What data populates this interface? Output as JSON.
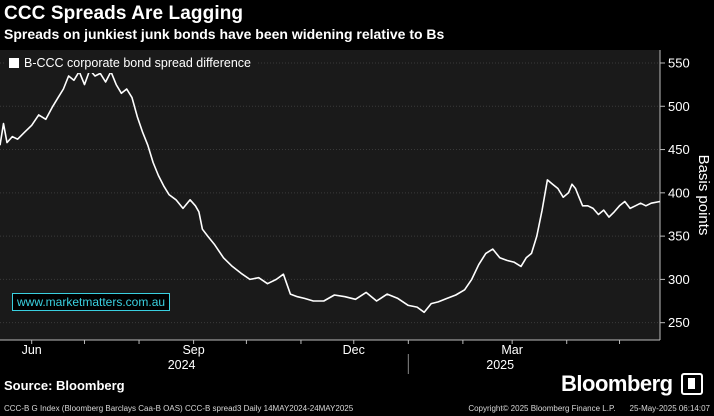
{
  "header": {
    "title": "CCC Spreads Are Lagging",
    "subtitle": "Spreads on junkiest junk bonds have been widening relative to Bs"
  },
  "legend": {
    "label": "B-CCC corporate bond spread difference"
  },
  "watermark": "www.marketmatters.com.au",
  "source": "Source: Bloomberg",
  "brand": "Bloomberg",
  "footer": {
    "left": "CCC-B G Index (Bloomberg Barclays Caa-B OAS) CCC-B spread3  Daily 14MAY2024-24MAY2025",
    "copyright": "Copyright© 2025 Bloomberg Finance L.P.",
    "timestamp": "25-May-2025 06:14:07"
  },
  "colors": {
    "line": "#ffffff",
    "background": "#000000",
    "plot_bg": "#1a1a1a",
    "watermark": "#3ad0e0"
  },
  "chart_data": {
    "type": "line",
    "title": "CCC Spreads Are Lagging",
    "ylabel": "Basis points",
    "xlabel": "",
    "ylim": [
      230,
      565
    ],
    "y_ticks": [
      250,
      300,
      350,
      400,
      450,
      500,
      550
    ],
    "y_tick_labels": [
      "250",
      "300",
      "350",
      "400",
      "450",
      "500",
      "550"
    ],
    "x_range": [
      "2024-05-14",
      "2025-05-24"
    ],
    "month_labels": [
      {
        "label": "Jun",
        "date": "2024-06-01"
      },
      {
        "label": "Sep",
        "date": "2024-09-01"
      },
      {
        "label": "Dec",
        "date": "2024-12-01"
      },
      {
        "label": "Mar",
        "date": "2025-03-01"
      }
    ],
    "year_labels": [
      {
        "label": "2024",
        "date": "2024-09-01"
      },
      {
        "label": "2025",
        "date": "2025-03-01"
      }
    ],
    "series": [
      {
        "name": "B-CCC corporate bond spread difference",
        "x": [
          "2024-05-14",
          "2024-05-16",
          "2024-05-18",
          "2024-05-21",
          "2024-05-24",
          "2024-05-28",
          "2024-06-01",
          "2024-06-05",
          "2024-06-09",
          "2024-06-13",
          "2024-06-16",
          "2024-06-19",
          "2024-06-22",
          "2024-06-25",
          "2024-06-28",
          "2024-07-01",
          "2024-07-04",
          "2024-07-07",
          "2024-07-10",
          "2024-07-13",
          "2024-07-16",
          "2024-07-19",
          "2024-07-22",
          "2024-07-25",
          "2024-07-28",
          "2024-07-31",
          "2024-08-03",
          "2024-08-06",
          "2024-08-09",
          "2024-08-12",
          "2024-08-15",
          "2024-08-18",
          "2024-08-22",
          "2024-08-26",
          "2024-08-30",
          "2024-09-02",
          "2024-09-04",
          "2024-09-06",
          "2024-09-09",
          "2024-09-13",
          "2024-09-18",
          "2024-09-23",
          "2024-09-28",
          "2024-10-03",
          "2024-10-08",
          "2024-10-13",
          "2024-10-18",
          "2024-10-22",
          "2024-10-26",
          "2024-10-30",
          "2024-11-03",
          "2024-11-08",
          "2024-11-14",
          "2024-11-20",
          "2024-11-26",
          "2024-12-02",
          "2024-12-08",
          "2024-12-14",
          "2024-12-20",
          "2024-12-26",
          "2025-01-01",
          "2025-01-06",
          "2025-01-10",
          "2025-01-14",
          "2025-01-18",
          "2025-01-23",
          "2025-01-28",
          "2025-02-02",
          "2025-02-06",
          "2025-02-10",
          "2025-02-14",
          "2025-02-18",
          "2025-02-22",
          "2025-02-26",
          "2025-03-02",
          "2025-03-06",
          "2025-03-09",
          "2025-03-12",
          "2025-03-15",
          "2025-03-18",
          "2025-03-21",
          "2025-03-24",
          "2025-03-27",
          "2025-03-30",
          "2025-04-02",
          "2025-04-04",
          "2025-04-06",
          "2025-04-08",
          "2025-04-10",
          "2025-04-13",
          "2025-04-16",
          "2025-04-19",
          "2025-04-22",
          "2025-04-25",
          "2025-04-28",
          "2025-05-01",
          "2025-05-04",
          "2025-05-07",
          "2025-05-10",
          "2025-05-13",
          "2025-05-16",
          "2025-05-19",
          "2025-05-24"
        ],
        "values": [
          455,
          480,
          458,
          465,
          462,
          470,
          478,
          490,
          485,
          500,
          510,
          520,
          535,
          530,
          540,
          525,
          542,
          535,
          538,
          528,
          540,
          525,
          515,
          520,
          510,
          488,
          470,
          455,
          435,
          420,
          408,
          398,
          392,
          382,
          392,
          385,
          378,
          358,
          350,
          340,
          325,
          315,
          307,
          300,
          302,
          295,
          300,
          306,
          283,
          280,
          278,
          275,
          275,
          282,
          280,
          277,
          285,
          275,
          283,
          278,
          270,
          268,
          262,
          272,
          274,
          278,
          282,
          288,
          300,
          317,
          330,
          335,
          325,
          322,
          320,
          315,
          325,
          330,
          350,
          380,
          415,
          410,
          405,
          395,
          400,
          410,
          405,
          395,
          385,
          385,
          382,
          375,
          380,
          372,
          378,
          385,
          390,
          382,
          385,
          388,
          385,
          388,
          390
        ]
      }
    ]
  }
}
